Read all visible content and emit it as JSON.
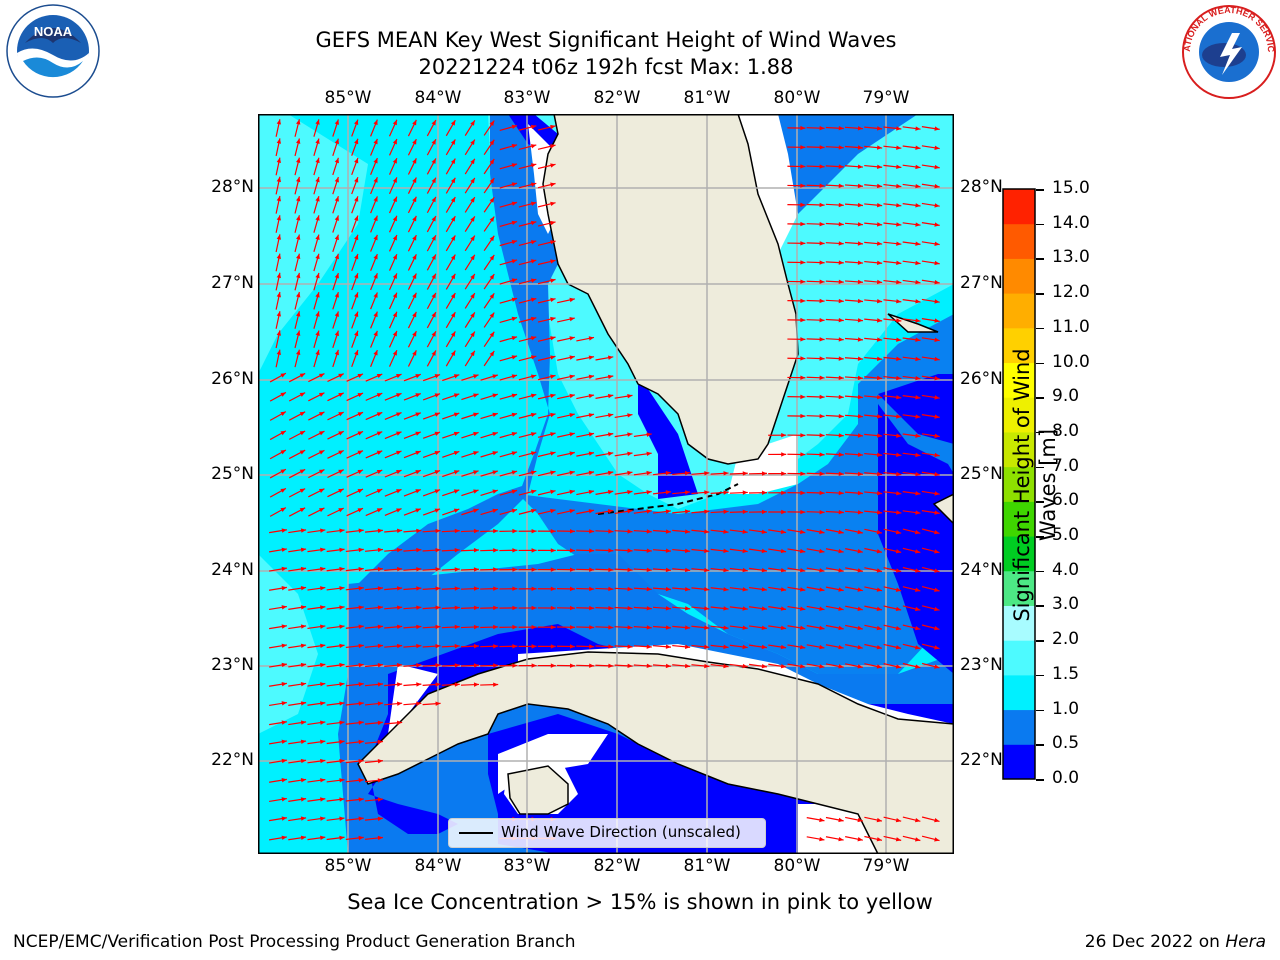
{
  "title": {
    "line1": "GEFS MEAN Key West Significant Height of Wind Waves",
    "line2": "20221224 t06z 192h fcst   Max: 1.88"
  },
  "longitude_ticks": [
    "85°W",
    "84°W",
    "83°W",
    "82°W",
    "81°W",
    "80°W",
    "79°W"
  ],
  "latitude_ticks": [
    "28°N",
    "27°N",
    "26°N",
    "25°N",
    "24°N",
    "23°N",
    "22°N"
  ],
  "colorbar": {
    "label": "Significant Height of Wind Waves [m]",
    "ticks": [
      "15.0",
      "14.0",
      "13.0",
      "12.0",
      "11.0",
      "10.0",
      "9.0",
      "8.0",
      "7.0",
      "6.0",
      "5.0",
      "4.0",
      "3.0",
      "2.0",
      "1.5",
      "1.0",
      "0.5",
      "0.0"
    ],
    "colors": [
      "#0000ff",
      "#0a7af0",
      "#00f0ff",
      "#4dfaff",
      "#a8fcff",
      "#4de885",
      "#00cd22",
      "#3fd600",
      "#8ee000",
      "#c8e800",
      "#eef000",
      "#ffff00",
      "#ffd000",
      "#ffae00",
      "#ff8a00",
      "#ff5a00",
      "#ff2200"
    ]
  },
  "legend": {
    "label": "Wind Wave Direction (unscaled)"
  },
  "sea_ice_note": "Sea Ice Concentration > 15% is shown in pink to yellow",
  "footer": {
    "left": "NCEP/EMC/Verification Post Processing Product Generation Branch",
    "right_prefix": "26 Dec 2022 on ",
    "right_machine": "Hera"
  },
  "logos": {
    "left": "NOAA",
    "right": "NATIONAL WEATHER SERVICE"
  },
  "colors": {
    "land": "#eeecdc",
    "vector": "#ff0000",
    "grid": "#b0b0b0"
  }
}
